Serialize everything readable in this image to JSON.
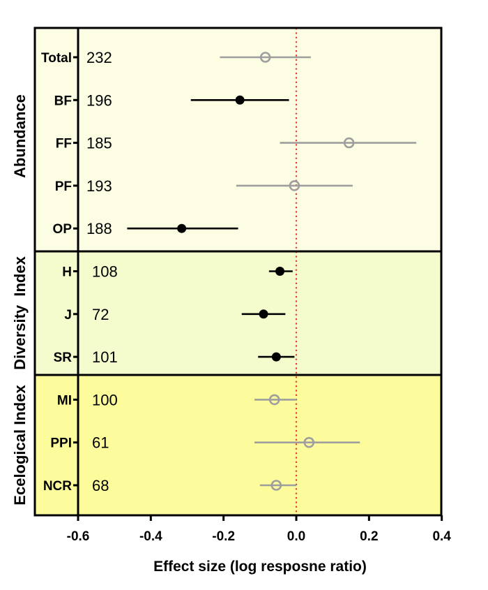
{
  "chart_data": {
    "type": "scatter",
    "subtype": "forest-plot",
    "xlabel": "Effect size (log resposne ratio)",
    "xlim": [
      -0.72,
      0.4
    ],
    "xticks": [
      "-0.6",
      "-0.4",
      "-0.2",
      "0.0",
      "0.2",
      "0.4"
    ],
    "xtick_values": [
      -0.6,
      -0.4,
      -0.2,
      0.0,
      0.2,
      0.4
    ],
    "reference_line": {
      "x": 0.0,
      "style": "dotted",
      "color": "#e53935"
    },
    "colors": {
      "significant": "#000000",
      "nonsignificant": "#9e9e9e",
      "abundance_bg": "#fdfde3",
      "diversity_bg": "#f4fccd",
      "ecological_bg": "#fdfc9c"
    },
    "groups": [
      {
        "name": "Abundance",
        "bg": "abundance_bg",
        "rows": [
          {
            "label": "Total",
            "n": "232",
            "mean": -0.085,
            "lower": -0.21,
            "upper": 0.04,
            "significant": false
          },
          {
            "label": "BF",
            "n": "196",
            "mean": -0.155,
            "lower": -0.29,
            "upper": -0.02,
            "significant": true
          },
          {
            "label": "FF",
            "n": "185",
            "mean": 0.145,
            "lower": -0.045,
            "upper": 0.33,
            "significant": false
          },
          {
            "label": "PF",
            "n": "193",
            "mean": -0.005,
            "lower": -0.165,
            "upper": 0.155,
            "significant": false
          },
          {
            "label": "OP",
            "n": "188",
            "mean": -0.315,
            "lower": -0.465,
            "upper": -0.16,
            "significant": true
          }
        ]
      },
      {
        "name": "Diversity  Index",
        "bg": "diversity_bg",
        "rows": [
          {
            "label": "H",
            "n": "108",
            "mean": -0.045,
            "lower": -0.075,
            "upper": -0.01,
            "significant": true
          },
          {
            "label": "J",
            "n": "72",
            "mean": -0.09,
            "lower": -0.15,
            "upper": -0.03,
            "significant": true
          },
          {
            "label": "SR",
            "n": "101",
            "mean": -0.055,
            "lower": -0.105,
            "upper": -0.005,
            "significant": true
          }
        ]
      },
      {
        "name": "Ecelogical Index",
        "bg": "ecological_bg",
        "rows": [
          {
            "label": "MI",
            "n": "100",
            "mean": -0.06,
            "lower": -0.115,
            "upper": 0.0,
            "significant": false
          },
          {
            "label": "PPI",
            "n": "61",
            "mean": 0.035,
            "lower": -0.115,
            "upper": 0.175,
            "significant": false
          },
          {
            "label": "NCR",
            "n": "68",
            "mean": -0.055,
            "lower": -0.1,
            "upper": 0.0,
            "significant": false
          }
        ]
      }
    ]
  }
}
